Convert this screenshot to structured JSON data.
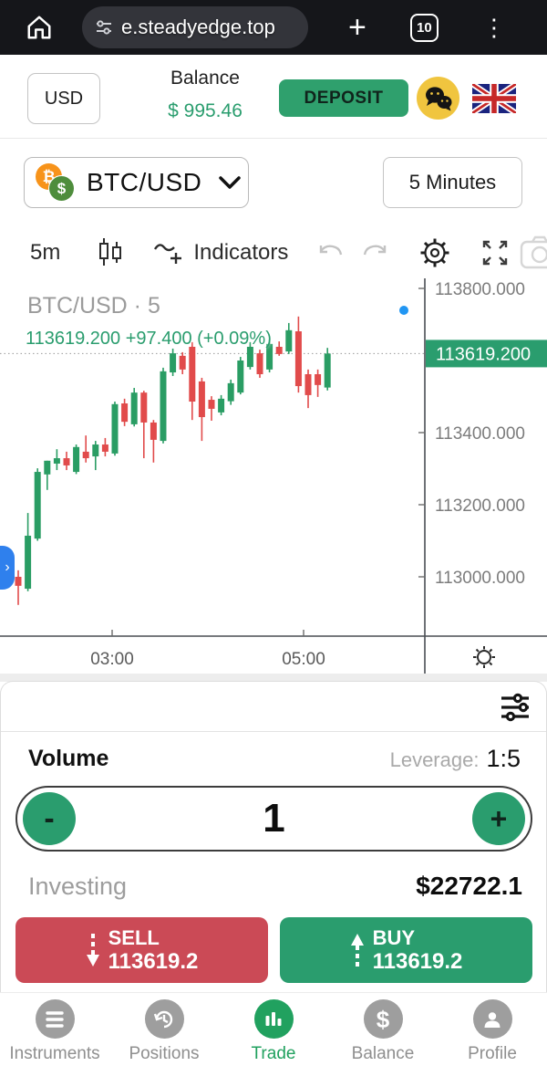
{
  "browser": {
    "url": "e.steadyedge.top",
    "tab_count": "10"
  },
  "header": {
    "currency": "USD",
    "balance_label": "Balance",
    "balance_value": "$ 995.46",
    "deposit_label": "DEPOSIT"
  },
  "selector": {
    "pair": "BTC/USD",
    "btc_symbol": "₿",
    "usd_symbol": "$",
    "timeframe": "5 Minutes"
  },
  "toolbar": {
    "interval": "5m",
    "indicators_label": "Indicators"
  },
  "chart_data": {
    "type": "candlestick",
    "symbol_title": "BTC/USD · 5",
    "legend_price": "113619.200 +97.400 (+0.09%)",
    "current_price": 113619.2,
    "current_price_label": "113619.200",
    "price_axis_labels": [
      {
        "label": "113800.000",
        "price": 113800
      },
      {
        "label": "113400.000",
        "price": 113400
      },
      {
        "label": "113200.000",
        "price": 113200
      },
      {
        "label": "113000.000",
        "price": 113000
      }
    ],
    "time_axis_labels": [
      {
        "label": "03:00",
        "x": 123
      },
      {
        "label": "05:00",
        "x": 333
      }
    ],
    "ylim": [
      112900,
      113830
    ],
    "up_color": "#2a9d64",
    "down_color": "#e14b4b",
    "candles": [
      [
        113000,
        113018,
        112922,
        112975
      ],
      [
        112967,
        113177,
        112960,
        113114
      ],
      [
        113106,
        113301,
        113100,
        113291
      ],
      [
        113284,
        113322,
        113241,
        113322
      ],
      [
        113314,
        113354,
        113296,
        113329
      ],
      [
        113329,
        113347,
        113296,
        113309
      ],
      [
        113291,
        113367,
        113285,
        113360
      ],
      [
        113347,
        113392,
        113317,
        113329
      ],
      [
        113334,
        113377,
        113296,
        113367
      ],
      [
        113367,
        113385,
        113334,
        113347
      ],
      [
        113342,
        113486,
        113336,
        113479
      ],
      [
        113481,
        113494,
        113418,
        113430
      ],
      [
        113423,
        113524,
        113417,
        113511
      ],
      [
        113511,
        113516,
        113329,
        113428
      ],
      [
        113428,
        113435,
        113317,
        113380
      ],
      [
        113377,
        113580,
        113370,
        113570
      ],
      [
        113567,
        113633,
        113557,
        113620
      ],
      [
        113613,
        113623,
        113562,
        113575
      ],
      [
        113638,
        113651,
        113435,
        113486
      ],
      [
        113542,
        113552,
        113377,
        113443
      ],
      [
        113491,
        113501,
        113433,
        113466
      ],
      [
        113456,
        113504,
        113448,
        113494
      ],
      [
        113487,
        113547,
        113477,
        113537
      ],
      [
        113511,
        113610,
        113506,
        113600
      ],
      [
        113582,
        113651,
        113575,
        113638
      ],
      [
        113620,
        113630,
        113552,
        113562
      ],
      [
        113575,
        113658,
        113567,
        113646
      ],
      [
        113638,
        113653,
        113613,
        113618
      ],
      [
        113625,
        113704,
        113618,
        113684
      ],
      [
        113681,
        113722,
        113511,
        113529
      ],
      [
        113562,
        113575,
        113468,
        113504
      ],
      [
        113562,
        113575,
        113499,
        113532
      ],
      [
        113525,
        113635,
        113517,
        113619.2
      ]
    ]
  },
  "trade_panel": {
    "volume_label": "Volume",
    "leverage_label": "Leverage:",
    "leverage_value": "1:5",
    "quantity": "1",
    "minus_label": "-",
    "plus_label": "+",
    "investing_label": "Investing",
    "investing_value": "$22722.1",
    "sell_label": "SELL",
    "sell_price": "113619.2",
    "buy_label": "BUY",
    "buy_price": "113619.2"
  },
  "nav": {
    "items": [
      {
        "label": "Instruments"
      },
      {
        "label": "Positions"
      },
      {
        "label": "Trade"
      },
      {
        "label": "Balance"
      },
      {
        "label": "Profile"
      }
    ]
  },
  "colors": {
    "accent_green": "#2a9d6e",
    "sell_red": "#cb4a56",
    "candle_up": "#2a9d64",
    "candle_down": "#e14b4b",
    "badge_green": "#2a9d6e",
    "scroll_blue": "#2f80ed",
    "marker_blue": "#2196f3"
  }
}
